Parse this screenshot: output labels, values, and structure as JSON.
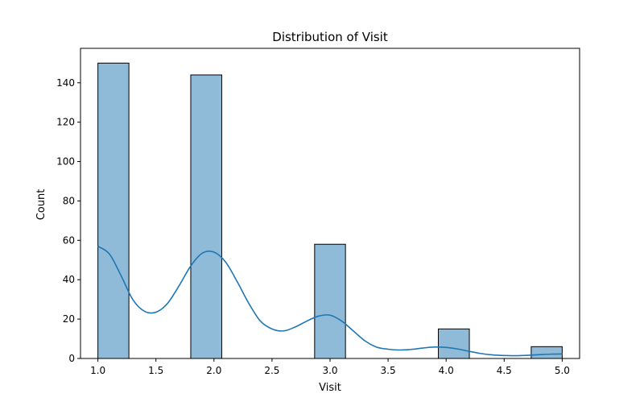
{
  "chart_data": {
    "type": "bar",
    "title": "Distribution of Visit",
    "xlabel": "Visit",
    "ylabel": "Count",
    "xlim": [
      0.85,
      5.15
    ],
    "ylim": [
      0,
      157.5
    ],
    "grid": false,
    "x_ticks": [
      1.0,
      1.5,
      2.0,
      2.5,
      3.0,
      3.5,
      4.0,
      4.5,
      5.0
    ],
    "x_tick_labels": [
      "1.0",
      "1.5",
      "2.0",
      "2.5",
      "3.0",
      "3.5",
      "4.0",
      "4.5",
      "5.0"
    ],
    "y_ticks": [
      0,
      20,
      40,
      60,
      80,
      100,
      120,
      140
    ],
    "y_tick_labels": [
      "0",
      "20",
      "40",
      "60",
      "80",
      "100",
      "120",
      "140"
    ],
    "bins": [
      {
        "x0": 1.0,
        "x1": 1.267,
        "count": 150
      },
      {
        "x0": 1.8,
        "x1": 2.067,
        "count": 144
      },
      {
        "x0": 2.867,
        "x1": 3.133,
        "count": 58
      },
      {
        "x0": 3.933,
        "x1": 4.2,
        "count": 15
      },
      {
        "x0": 4.733,
        "x1": 5.0,
        "count": 6
      }
    ],
    "kde": {
      "x": [
        1.0,
        1.1,
        1.2,
        1.3,
        1.4,
        1.5,
        1.6,
        1.7,
        1.8,
        1.9,
        2.0,
        2.1,
        2.2,
        2.3,
        2.4,
        2.5,
        2.6,
        2.7,
        2.8,
        2.9,
        3.0,
        3.1,
        3.2,
        3.3,
        3.4,
        3.5,
        3.6,
        3.7,
        3.8,
        3.9,
        4.0,
        4.1,
        4.2,
        4.3,
        4.4,
        4.5,
        4.6,
        4.7,
        4.8,
        4.9,
        5.0
      ],
      "y": [
        57,
        53,
        42,
        30,
        24,
        23.5,
        28,
        37,
        47,
        53.5,
        54,
        49,
        39,
        28,
        19,
        15,
        14,
        16,
        19,
        21.5,
        22,
        19,
        14,
        9,
        5.8,
        4.7,
        4.3,
        4.6,
        5.3,
        5.8,
        5.6,
        4.8,
        3.6,
        2.5,
        1.8,
        1.5,
        1.4,
        1.6,
        1.9,
        2.2,
        2.3
      ]
    },
    "colors": {
      "bar_fill": "#8fbbd9",
      "bar_edge": "#000000",
      "kde_line": "#1f77b4",
      "axis": "#000000"
    }
  }
}
